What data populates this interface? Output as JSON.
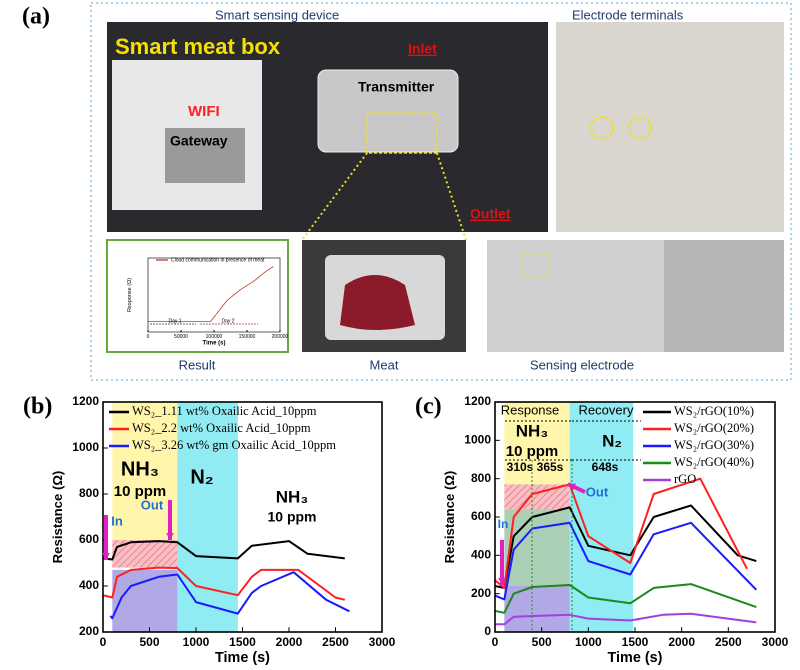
{
  "panel_a": {
    "label": "(a)",
    "texts": [
      "Smart sensing device",
      "Electrode terminals",
      "Smart meat box",
      "Inlet",
      "WIFI",
      "Transmitter",
      "Gateway",
      "Outlet",
      "Result",
      "Meat",
      "Sensing electrode"
    ]
  },
  "chart_data": [
    {
      "type": "line",
      "x_label": "Time (s)",
      "y_label": "Response (Ω)",
      "xlim": [
        0,
        200000
      ],
      "xticks": [
        0,
        50000,
        100000,
        150000,
        200000
      ],
      "ylim": [
        0,
        350
      ],
      "series": [
        {
          "name": "Cloud communication in presence of meat",
          "color": "#c0392b",
          "x": [
            0,
            40000,
            95000,
            120000,
            140000,
            160000,
            180000,
            190000
          ],
          "values": [
            50,
            50,
            50,
            150,
            200,
            240,
            290,
            310
          ]
        }
      ],
      "annotations": [
        "Day 1",
        "Day 2"
      ],
      "regions": []
    },
    {
      "type": "line",
      "panel_label": "(b)",
      "x_label": "Time (s)",
      "y_label": "Resistance (Ω)",
      "xlim": [
        0,
        3000
      ],
      "xticks": [
        0,
        500,
        1000,
        1500,
        2000,
        2500,
        3000
      ],
      "ylim": [
        200,
        1200
      ],
      "yticks": [
        200,
        400,
        600,
        800,
        1000,
        1200
      ],
      "regions": [
        {
          "x": [
            100,
            800
          ],
          "y": [
            600,
            1200
          ],
          "color": "#fff59d"
        },
        {
          "x": [
            800,
            1450
          ],
          "y": [
            200,
            1200
          ],
          "color": "#7ee8f0"
        },
        {
          "x": [
            100,
            800
          ],
          "y": [
            480,
            600
          ],
          "color": "#f7b3b8"
        },
        {
          "x": [
            100,
            800
          ],
          "y": [
            200,
            470
          ],
          "color": "#a39ae0"
        }
      ],
      "series": [
        {
          "name": "WS₂_1.11 wt% Oxailic Acid_10ppm",
          "color": "#000000",
          "x": [
            0,
            100,
            150,
            300,
            600,
            800,
            1000,
            1450,
            1600,
            2000,
            2200,
            2600
          ],
          "values": [
            520,
            515,
            570,
            590,
            595,
            590,
            530,
            520,
            575,
            595,
            540,
            520
          ]
        },
        {
          "name": "WS₂_2.2 wt% Oxailic Acid_10ppm",
          "color": "#ff2020",
          "x": [
            0,
            100,
            150,
            300,
            600,
            800,
            1000,
            1450,
            1600,
            1700,
            2100,
            2500,
            2600
          ],
          "values": [
            360,
            350,
            440,
            470,
            480,
            478,
            400,
            360,
            440,
            470,
            470,
            350,
            340
          ]
        },
        {
          "name": "WS₂_3.26 wt% gm Oxailic Acid_10ppm",
          "color": "#1a1aff",
          "x": [
            80,
            100,
            200,
            300,
            600,
            800,
            1000,
            1450,
            1600,
            1700,
            2050,
            2400,
            2650
          ],
          "values": [
            270,
            260,
            350,
            400,
            440,
            450,
            330,
            280,
            370,
            400,
            460,
            340,
            290
          ]
        }
      ],
      "annotations": [
        "NH₃",
        "10 ppm",
        "N₂",
        "NH₃",
        "10 ppm",
        "In",
        "Out"
      ]
    },
    {
      "type": "line",
      "panel_label": "(c)",
      "x_label": "Time (s)",
      "y_label": "Resistance (Ω)",
      "xlim": [
        0,
        3000
      ],
      "xticks": [
        0,
        500,
        1000,
        1500,
        2000,
        2500,
        3000
      ],
      "ylim": [
        0,
        1200
      ],
      "yticks": [
        0,
        200,
        400,
        600,
        800,
        1000,
        1200
      ],
      "regions": [
        {
          "x": [
            100,
            800
          ],
          "y": [
            770,
            1200
          ],
          "color": "#fff59d"
        },
        {
          "x": [
            800,
            1480
          ],
          "y": [
            0,
            1200
          ],
          "color": "#7ee8f0"
        },
        {
          "x": [
            100,
            800
          ],
          "y": [
            640,
            770
          ],
          "color": "#f7b3b8"
        },
        {
          "x": [
            100,
            800
          ],
          "y": [
            240,
            640
          ],
          "color": "#9bc7a8"
        },
        {
          "x": [
            100,
            800
          ],
          "y": [
            0,
            240
          ],
          "color": "#a39ae0"
        }
      ],
      "series": [
        {
          "name": "WS₂/rGO(10%)",
          "color": "#000000",
          "x": [
            0,
            100,
            200,
            400,
            800,
            1000,
            1450,
            1700,
            2100,
            2600,
            2800
          ],
          "values": [
            240,
            230,
            500,
            600,
            650,
            450,
            400,
            600,
            660,
            400,
            370
          ]
        },
        {
          "name": "WS₂/rGO(20%)",
          "color": "#ff2020",
          "x": [
            0,
            100,
            200,
            400,
            800,
            1000,
            1450,
            1700,
            2200,
            2700
          ],
          "values": [
            270,
            230,
            600,
            720,
            770,
            500,
            360,
            720,
            800,
            330
          ]
        },
        {
          "name": "WS₂/rGO(30%)",
          "color": "#1a1aff",
          "x": [
            0,
            100,
            200,
            400,
            800,
            1000,
            1450,
            1700,
            2100,
            2800
          ],
          "values": [
            190,
            170,
            430,
            540,
            570,
            370,
            300,
            510,
            570,
            220
          ]
        },
        {
          "name": "WS₂/rGO(40%)",
          "color": "#1a8a1a",
          "x": [
            0,
            100,
            200,
            400,
            800,
            1000,
            1450,
            1700,
            2100,
            2800
          ],
          "values": [
            110,
            100,
            200,
            235,
            245,
            180,
            150,
            230,
            250,
            130
          ]
        },
        {
          "name": "rGO",
          "color": "#a040e0",
          "x": [
            0,
            100,
            200,
            800,
            1000,
            1450,
            1800,
            2100,
            2800
          ],
          "values": [
            40,
            40,
            80,
            90,
            70,
            60,
            90,
            95,
            50
          ]
        }
      ],
      "annotations": [
        "Response",
        "Recovery",
        "NH₃",
        "10 ppm",
        "N₂",
        "310s",
        "365s",
        "648s",
        "In",
        "Out"
      ]
    }
  ]
}
